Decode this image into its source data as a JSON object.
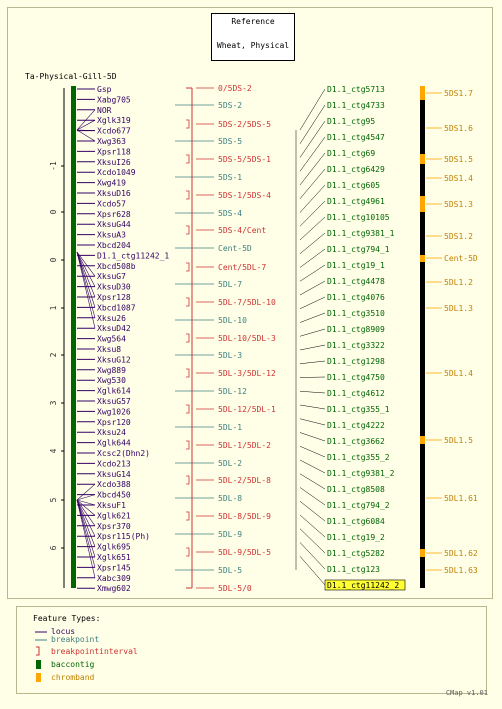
{
  "reference": {
    "line1": "Reference",
    "line2": "Wheat, Physical"
  },
  "map_title": "Ta-Physical-Gill-5D",
  "colors": {
    "locus": "#330066",
    "breakpoint": "#408080",
    "interval": "#cc3333",
    "contig": "#006600",
    "chromband": "#ffa500",
    "axis": "#000000",
    "highlight": "#ffff33"
  },
  "axis_ticks": [
    "-1",
    "0",
    "0",
    "1",
    "2",
    "3",
    "4",
    "5",
    "6"
  ],
  "loci": [
    "Gsp",
    "Xabg705",
    "NOR",
    "Xglk319",
    "Xcdo677",
    "Xwg363",
    "Xpsr118",
    "XksuI26",
    "Xcdo1049",
    "Xwg419",
    "XksuD16",
    "Xcdo57",
    "Xpsr628",
    "XksuG44",
    "XksuA3",
    "Xbcd204",
    "D1.1_ctg11242_1",
    "Xbcd508b",
    "XksuG7",
    "XksuD30",
    "Xpsr128",
    "Xbcd1087",
    "Xksu26",
    "XksuD42",
    "Xwg564",
    "Xksu8",
    "XksuG12",
    "Xwg889",
    "Xwg530",
    "Xglk614",
    "XksuG57",
    "Xwg1026",
    "Xpsr120",
    "Xksu24",
    "Xglk644",
    "Xcsc2(Dhn2)",
    "Xcdo213",
    "XksuG14",
    "Xcdo388",
    "Xbcd450",
    "XksuF1",
    "Xglk621",
    "Xpsr370",
    "Xpsr115(Ph)",
    "Xglk695",
    "Xglk651",
    "Xpsr145",
    "Xabc309",
    "Xmwg602"
  ],
  "breakpoints": [
    {
      "label": "0/5DS-2",
      "kind": "interval"
    },
    {
      "label": "5DS-2",
      "kind": "breakpoint"
    },
    {
      "label": "5DS-2/5DS-5",
      "kind": "interval"
    },
    {
      "label": "5DS-5",
      "kind": "breakpoint"
    },
    {
      "label": "5DS-5/5DS-1",
      "kind": "interval"
    },
    {
      "label": "5DS-1",
      "kind": "breakpoint"
    },
    {
      "label": "5DS-1/5DS-4",
      "kind": "interval"
    },
    {
      "label": "5DS-4",
      "kind": "breakpoint"
    },
    {
      "label": "5DS-4/Cent",
      "kind": "interval"
    },
    {
      "label": "Cent-5D",
      "kind": "breakpoint"
    },
    {
      "label": "Cent/5DL-7",
      "kind": "interval"
    },
    {
      "label": "5DL-7",
      "kind": "breakpoint"
    },
    {
      "label": "5DL-7/5DL-10",
      "kind": "interval"
    },
    {
      "label": "5DL-10",
      "kind": "breakpoint"
    },
    {
      "label": "5DL-10/5DL-3",
      "kind": "interval"
    },
    {
      "label": "5DL-3",
      "kind": "breakpoint"
    },
    {
      "label": "5DL-3/5DL-12",
      "kind": "interval"
    },
    {
      "label": "5DL-12",
      "kind": "breakpoint"
    },
    {
      "label": "5DL-12/5DL-1",
      "kind": "interval"
    },
    {
      "label": "5DL-1",
      "kind": "breakpoint"
    },
    {
      "label": "5DL-1/5DL-2",
      "kind": "interval"
    },
    {
      "label": "5DL-2",
      "kind": "breakpoint"
    },
    {
      "label": "5DL-2/5DL-8",
      "kind": "interval"
    },
    {
      "label": "5DL-8",
      "kind": "breakpoint"
    },
    {
      "label": "5DL-8/5DL-9",
      "kind": "interval"
    },
    {
      "label": "5DL-9",
      "kind": "breakpoint"
    },
    {
      "label": "5DL-9/5DL-5",
      "kind": "interval"
    },
    {
      "label": "5DL-5",
      "kind": "breakpoint"
    },
    {
      "label": "5DL-5/0",
      "kind": "interval"
    }
  ],
  "contigs": [
    "D1.1_ctg5713",
    "D1.1_ctg4733",
    "D1.1_ctg95",
    "D1.1_ctg4547",
    "D1.1_ctg69",
    "D1.1_ctg6429",
    "D1.1_ctg605",
    "D1.1_ctg4961",
    "D1.1_ctg10105",
    "D1.1_ctg9381_1",
    "D1.1_ctg794_1",
    "D1.1_ctg19_1",
    "D1.1_ctg4478",
    "D1.1_ctg4076",
    "D1.1_ctg3510",
    "D1.1_ctg8909",
    "D1.1_ctg3322",
    "D1.1_ctg1298",
    "D1.1_ctg4750",
    "D1.1_ctg4612",
    "D1.1_ctg355_1",
    "D1.1_ctg4222",
    "D1.1_ctg3662",
    "D1.1_ctg355_2",
    "D1.1_ctg9381_2",
    "D1.1_ctg8508",
    "D1.1_ctg794_2",
    "D1.1_ctg6084",
    "D1.1_ctg19_2",
    "D1.1_ctg5282",
    "D1.1_ctg123",
    "D1.1_ctg11242_2"
  ],
  "chrombands": [
    "5DS1.7",
    "5DS1.6",
    "5DS1.5",
    "5DS1.4",
    "5DS1.3",
    "5DS1.2",
    "Cent-5D",
    "5DL1.2",
    "5DL1.3",
    "5DL1.4",
    "5DL1.5",
    "5DL1.61",
    "5DL1.62",
    "5DL1.63"
  ],
  "legend": {
    "title": "Feature Types:",
    "items": [
      "locus",
      "breakpoint",
      "breakpointinterval",
      "baccontig",
      "chromband"
    ]
  },
  "version": "CMap v1.01"
}
